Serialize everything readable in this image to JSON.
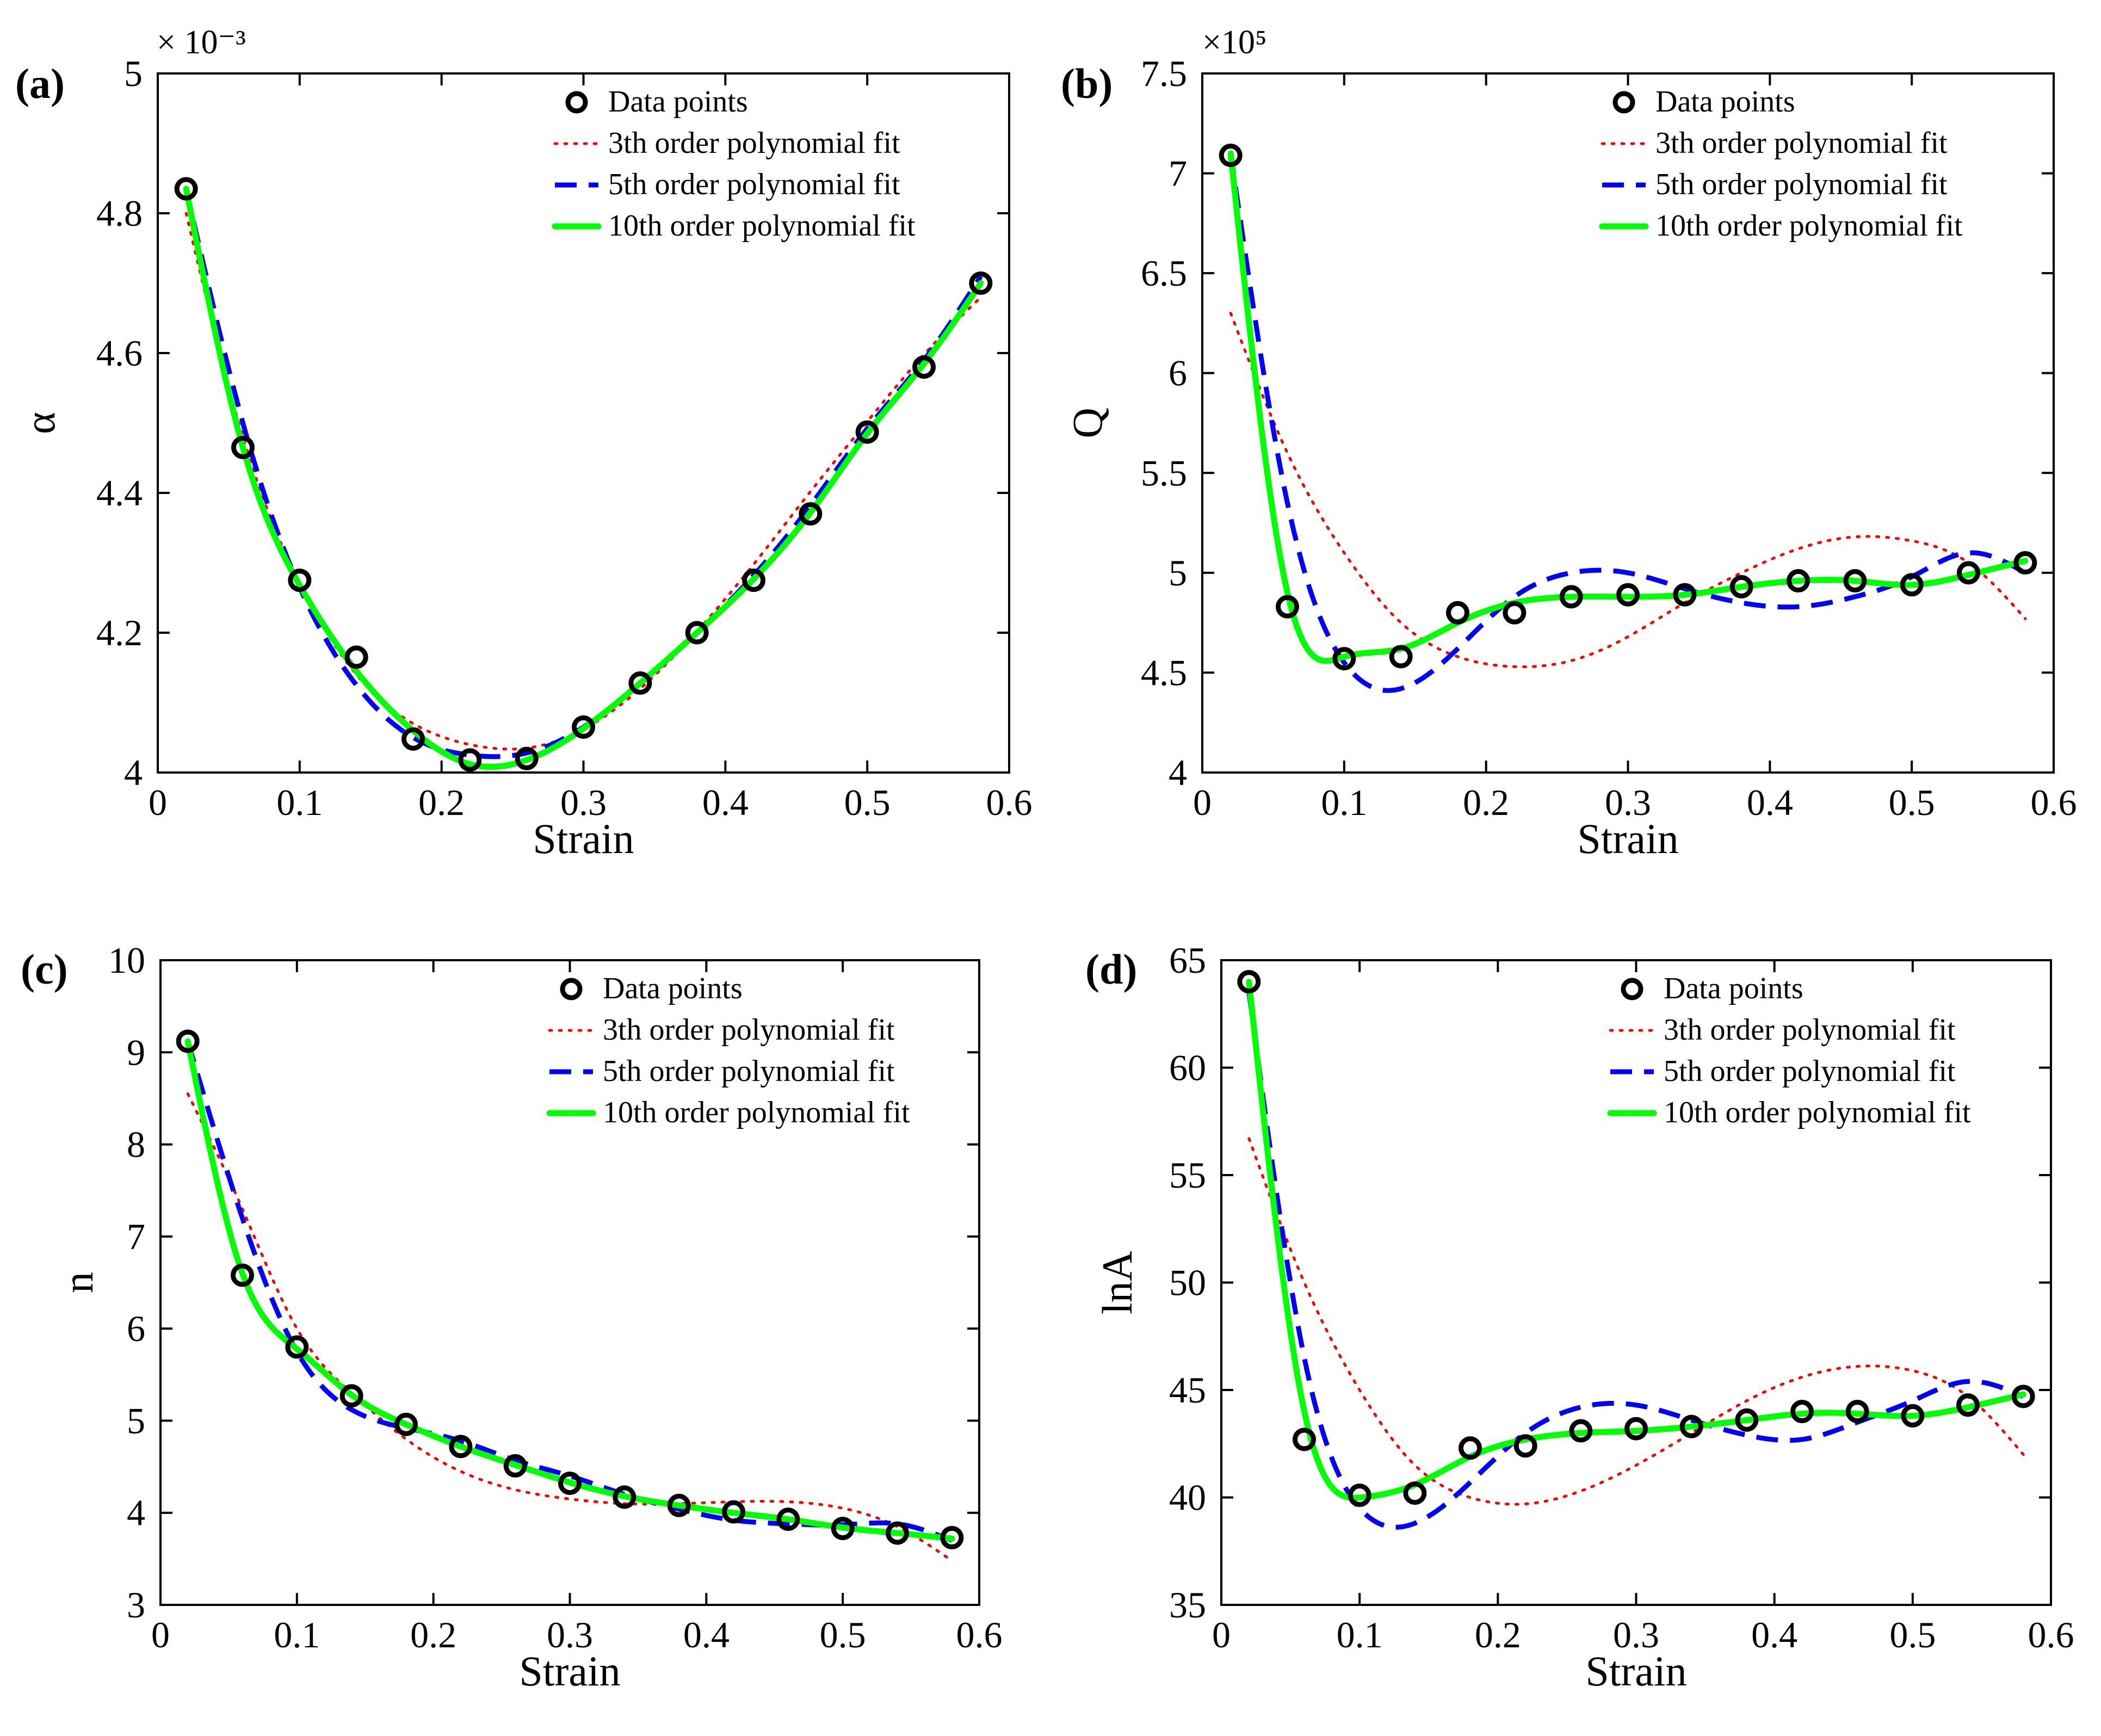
{
  "colors": {
    "data_marker": "#000000",
    "fit3": "#ff0000",
    "fit5": "#0000ff",
    "fit10": "#00ff00",
    "axes": "#000000",
    "background": "#ffffff"
  },
  "legend_labels": {
    "data": "Data points",
    "fit3": "3th order polynomial fit",
    "fit5": "5th order polynomial fit",
    "fit10": "10th order polynomial fit"
  },
  "chart_data": [
    {
      "panel": "(a)",
      "type": "line",
      "xlabel": "Strain",
      "ylabel": "α",
      "exponent_label": "× 10⁻³",
      "xlim": [
        0,
        0.6
      ],
      "ylim": [
        4.0,
        5.0
      ],
      "xticks": [
        0,
        0.1,
        0.2,
        0.3,
        0.4,
        0.5,
        0.6
      ],
      "xtick_labels": [
        "0",
        "0.1",
        "0.2",
        "0.3",
        "0.4",
        "0.5",
        "0.6"
      ],
      "yticks": [
        4.0,
        4.2,
        4.4,
        4.6,
        4.8,
        5.0
      ],
      "ytick_labels": [
        "4",
        "4.2",
        "4.4",
        "4.6",
        "4.8",
        "5"
      ],
      "x": [
        0.02,
        0.06,
        0.1,
        0.14,
        0.18,
        0.22,
        0.26,
        0.3,
        0.34,
        0.38,
        0.42,
        0.46,
        0.5,
        0.54,
        0.58
      ],
      "series": [
        {
          "name": "Data points",
          "kind": "data",
          "values": [
            4.835,
            4.465,
            4.275,
            4.165,
            4.048,
            4.018,
            4.02,
            4.065,
            4.128,
            4.2,
            4.275,
            4.37,
            4.487,
            4.58,
            4.7
          ]
        },
        {
          "name": "3th order polynomial fit",
          "kind": "fit3",
          "values": [
            4.8,
            4.48,
            4.27,
            4.14,
            4.07,
            4.04,
            4.035,
            4.062,
            4.12,
            4.202,
            4.298,
            4.402,
            4.502,
            4.598,
            4.68
          ]
        },
        {
          "name": "5th order polynomial fit",
          "kind": "fit5",
          "values": [
            4.835,
            4.5,
            4.265,
            4.125,
            4.05,
            4.025,
            4.028,
            4.065,
            4.127,
            4.2,
            4.282,
            4.382,
            4.492,
            4.59,
            4.71
          ]
        },
        {
          "name": "10th order polynomial fit",
          "kind": "fit10",
          "values": [
            4.835,
            4.465,
            4.268,
            4.145,
            4.06,
            4.012,
            4.018,
            4.063,
            4.128,
            4.2,
            4.277,
            4.372,
            4.485,
            4.585,
            4.7
          ]
        }
      ]
    },
    {
      "panel": "(b)",
      "type": "line",
      "xlabel": "Strain",
      "ylabel": "Q",
      "exponent_label": "×10⁵",
      "xlim": [
        0,
        0.6
      ],
      "ylim": [
        4.0,
        7.5
      ],
      "xticks": [
        0,
        0.1,
        0.2,
        0.3,
        0.4,
        0.5,
        0.6
      ],
      "xtick_labels": [
        "0",
        "0.1",
        "0.2",
        "0.3",
        "0.4",
        "0.5",
        "0.6"
      ],
      "yticks": [
        4.0,
        4.5,
        5.0,
        5.5,
        6.0,
        6.5,
        7.0,
        7.5
      ],
      "ytick_labels": [
        "4",
        "4.5",
        "5",
        "5.5",
        "6",
        "6.5",
        "7",
        "7.5"
      ],
      "x": [
        0.02,
        0.06,
        0.1,
        0.14,
        0.18,
        0.22,
        0.26,
        0.3,
        0.34,
        0.38,
        0.42,
        0.46,
        0.5,
        0.54,
        0.58
      ],
      "series": [
        {
          "name": "Data points",
          "kind": "data",
          "values": [
            7.09,
            4.83,
            4.57,
            4.58,
            4.8,
            4.8,
            4.88,
            4.89,
            4.89,
            4.93,
            4.96,
            4.96,
            4.94,
            5.0,
            5.05
          ]
        },
        {
          "name": "3th order polynomial fit",
          "kind": "fit3",
          "values": [
            6.3,
            5.6,
            5.1,
            4.75,
            4.58,
            4.53,
            4.56,
            4.68,
            4.85,
            5.0,
            5.12,
            5.18,
            5.16,
            5.05,
            4.77
          ]
        },
        {
          "name": "5th order polynomial fit",
          "kind": "fit5",
          "values": [
            7.1,
            5.35,
            4.55,
            4.42,
            4.62,
            4.88,
            5.0,
            5.0,
            4.92,
            4.85,
            4.83,
            4.88,
            4.98,
            5.1,
            5.0
          ]
        },
        {
          "name": "10th order polynomial fit",
          "kind": "fit10",
          "values": [
            7.1,
            4.9,
            4.58,
            4.62,
            4.75,
            4.85,
            4.88,
            4.88,
            4.89,
            4.93,
            4.96,
            4.96,
            4.94,
            4.99,
            5.06
          ]
        }
      ]
    },
    {
      "panel": "(c)",
      "type": "line",
      "xlabel": "Strain",
      "ylabel": "n",
      "exponent_label": "",
      "xlim": [
        0,
        0.6
      ],
      "ylim": [
        3,
        10
      ],
      "xticks": [
        0,
        0.1,
        0.2,
        0.3,
        0.4,
        0.5,
        0.6
      ],
      "xtick_labels": [
        "0",
        "0.1",
        "0.2",
        "0.3",
        "0.4",
        "0.5",
        "0.6"
      ],
      "yticks": [
        3,
        4,
        5,
        6,
        7,
        8,
        9,
        10
      ],
      "ytick_labels": [
        "3",
        "4",
        "5",
        "6",
        "7",
        "8",
        "9",
        "10"
      ],
      "x": [
        0.02,
        0.06,
        0.1,
        0.14,
        0.18,
        0.22,
        0.26,
        0.3,
        0.34,
        0.38,
        0.42,
        0.46,
        0.5,
        0.54,
        0.58
      ],
      "series": [
        {
          "name": "Data points",
          "kind": "data",
          "values": [
            9.12,
            6.58,
            5.8,
            5.27,
            4.96,
            4.72,
            4.51,
            4.32,
            4.17,
            4.08,
            4.01,
            3.93,
            3.83,
            3.78,
            3.73
          ]
        },
        {
          "name": "3th order polynomial fit",
          "kind": "fit3",
          "values": [
            8.55,
            7.3,
            6.0,
            5.3,
            4.8,
            4.45,
            4.25,
            4.15,
            4.1,
            4.1,
            4.12,
            4.12,
            4.05,
            3.85,
            3.48
          ]
        },
        {
          "name": "5th order polynomial fit",
          "kind": "fit5",
          "values": [
            9.12,
            7.2,
            5.75,
            5.12,
            4.92,
            4.78,
            4.57,
            4.4,
            4.2,
            4.04,
            3.92,
            3.88,
            3.87,
            3.88,
            3.7
          ]
        },
        {
          "name": "10th order polynomial fit",
          "kind": "fit10",
          "values": [
            9.12,
            6.6,
            5.78,
            5.28,
            4.96,
            4.72,
            4.52,
            4.33,
            4.18,
            4.08,
            4.0,
            3.93,
            3.84,
            3.78,
            3.72
          ]
        }
      ]
    },
    {
      "panel": "(d)",
      "type": "line",
      "xlabel": "Strain",
      "ylabel": "lnA",
      "exponent_label": "",
      "xlim": [
        0,
        0.6
      ],
      "ylim": [
        35,
        65
      ],
      "xticks": [
        0,
        0.1,
        0.2,
        0.3,
        0.4,
        0.5,
        0.6
      ],
      "xtick_labels": [
        "0",
        "0.1",
        "0.2",
        "0.3",
        "0.4",
        "0.5",
        "0.6"
      ],
      "yticks": [
        35,
        40,
        45,
        50,
        55,
        60,
        65
      ],
      "ytick_labels": [
        "35",
        "40",
        "45",
        "50",
        "55",
        "60",
        "65"
      ],
      "x": [
        0.02,
        0.06,
        0.1,
        0.14,
        0.18,
        0.22,
        0.26,
        0.3,
        0.34,
        0.38,
        0.42,
        0.46,
        0.5,
        0.54,
        0.58
      ],
      "series": [
        {
          "name": "Data points",
          "kind": "data",
          "values": [
            64.0,
            42.7,
            40.1,
            40.2,
            42.3,
            42.4,
            43.1,
            43.2,
            43.3,
            43.6,
            44.0,
            44.0,
            43.8,
            44.3,
            44.7
          ]
        },
        {
          "name": "3th order polynomial fit",
          "kind": "fit3",
          "values": [
            56.7,
            50.0,
            45.0,
            41.5,
            40.0,
            39.7,
            40.3,
            41.5,
            43.0,
            44.5,
            45.6,
            46.1,
            45.9,
            44.7,
            42.0
          ]
        },
        {
          "name": "5th order polynomial fit",
          "kind": "fit5",
          "values": [
            63.5,
            46.5,
            39.5,
            38.8,
            40.7,
            43.0,
            44.2,
            44.3,
            43.6,
            42.9,
            42.7,
            43.5,
            44.5,
            45.4,
            44.7
          ]
        },
        {
          "name": "10th order polynomial fit",
          "kind": "fit10",
          "values": [
            64.0,
            44.0,
            40.0,
            40.6,
            41.9,
            42.7,
            43.0,
            43.1,
            43.3,
            43.6,
            43.9,
            43.9,
            43.8,
            44.2,
            44.8
          ]
        }
      ]
    }
  ]
}
